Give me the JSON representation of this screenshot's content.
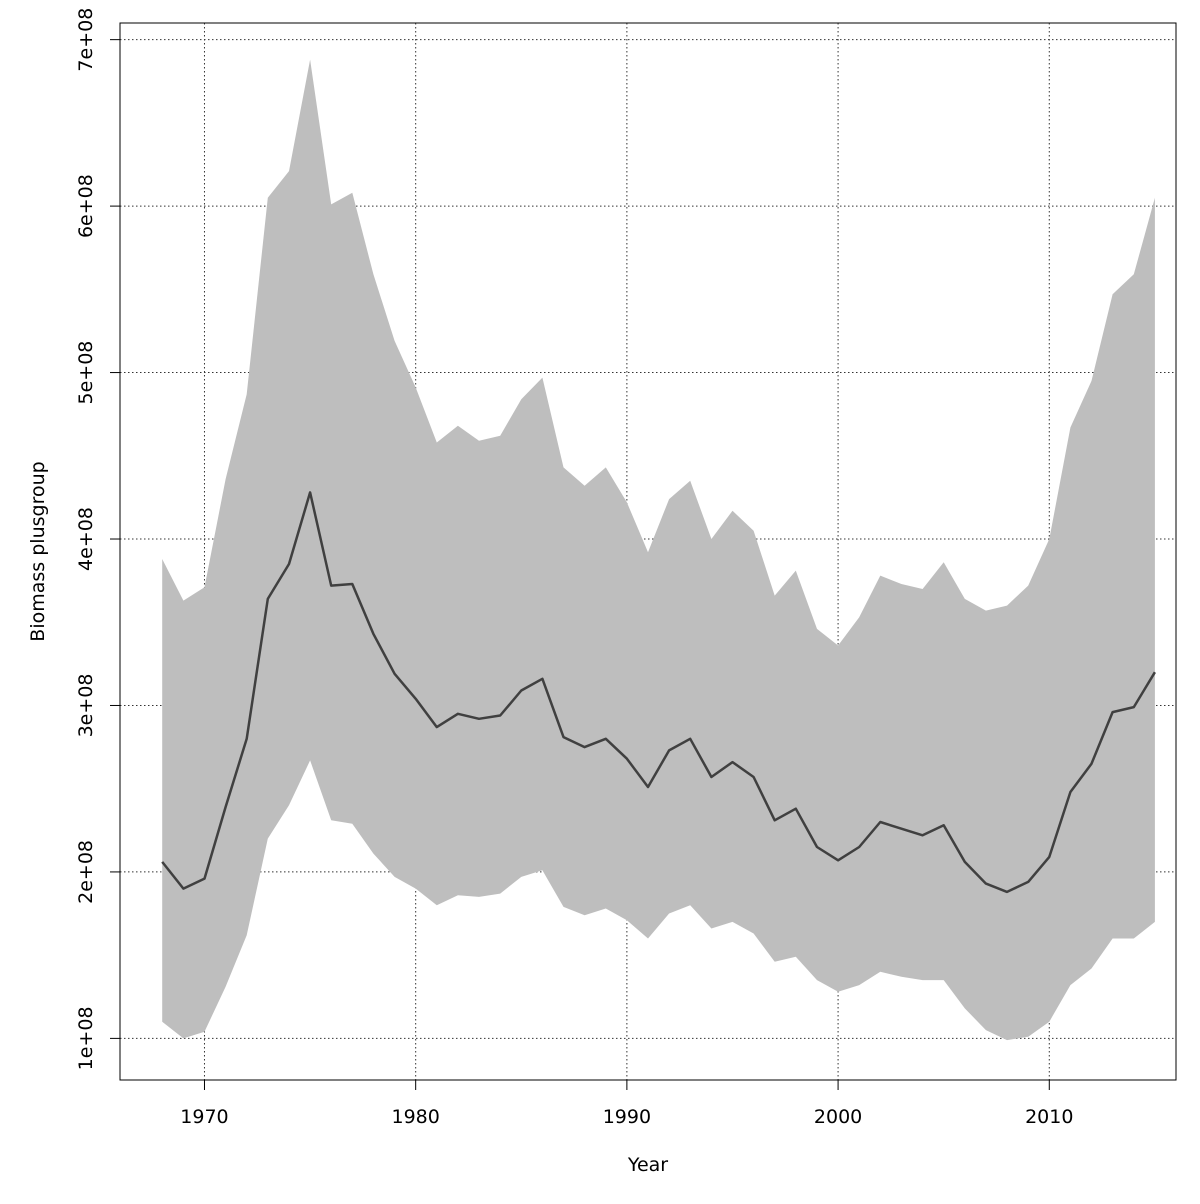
{
  "chart_data": {
    "type": "area",
    "title": "",
    "xlabel": "Year",
    "ylabel": "Biomass plusgroup",
    "xlim": [
      1966,
      2016
    ],
    "ylim": [
      75000000,
      710000000
    ],
    "grid": true,
    "x_ticks": [
      1970,
      1980,
      1990,
      2000,
      2010
    ],
    "x_tick_labels": [
      "1970",
      "1980",
      "1990",
      "2000",
      "2010"
    ],
    "y_ticks": [
      100000000,
      200000000,
      300000000,
      400000000,
      500000000,
      600000000,
      700000000
    ],
    "y_tick_labels": [
      "1e+08",
      "2e+08",
      "3e+08",
      "4e+08",
      "5e+08",
      "6e+08",
      "7e+08"
    ],
    "colors": {
      "band": "#bebebe",
      "line": "#404040",
      "grid": "#333333",
      "axis": "#000000"
    },
    "x": [
      1968,
      1969,
      1970,
      1971,
      1972,
      1973,
      1974,
      1975,
      1976,
      1977,
      1978,
      1979,
      1980,
      1981,
      1982,
      1983,
      1984,
      1985,
      1986,
      1987,
      1988,
      1989,
      1990,
      1991,
      1992,
      1993,
      1994,
      1995,
      1996,
      1997,
      1998,
      1999,
      2000,
      2001,
      2002,
      2003,
      2004,
      2005,
      2006,
      2007,
      2008,
      2009,
      2010,
      2011,
      2012,
      2013,
      2014,
      2015
    ],
    "series": [
      {
        "role": "median",
        "values": [
          206,
          190,
          196,
          239,
          280,
          364,
          385,
          428,
          372,
          373,
          343,
          319,
          304,
          287,
          295,
          292,
          294,
          309,
          316,
          281,
          275,
          280,
          268,
          251,
          273,
          280,
          257,
          266,
          257,
          231,
          238,
          215,
          207,
          215,
          230,
          226,
          222,
          228,
          206,
          193,
          188,
          194,
          209,
          248,
          265,
          296,
          299,
          320
        ]
      },
      {
        "role": "lower",
        "values": [
          110,
          100,
          104,
          131,
          162,
          220,
          240,
          267,
          231,
          229,
          211,
          197,
          190,
          180,
          186,
          185,
          187,
          197,
          201,
          179,
          174,
          178,
          171,
          160,
          175,
          180,
          166,
          170,
          163,
          146,
          149,
          135,
          128,
          132,
          140,
          137,
          135,
          135,
          118,
          105,
          99,
          101,
          110,
          132,
          142,
          160,
          160,
          170
        ]
      },
      {
        "role": "upper",
        "values": [
          388,
          363,
          371,
          436,
          487,
          605,
          621,
          688,
          601,
          608,
          559,
          519,
          491,
          458,
          468,
          459,
          462,
          484,
          497,
          443,
          432,
          443,
          422,
          392,
          424,
          435,
          400,
          417,
          405,
          366,
          381,
          346,
          336,
          353,
          378,
          373,
          370,
          386,
          364,
          357,
          360,
          372,
          400,
          467,
          495,
          547,
          559,
          605
        ]
      }
    ],
    "value_unit": 1000000
  }
}
